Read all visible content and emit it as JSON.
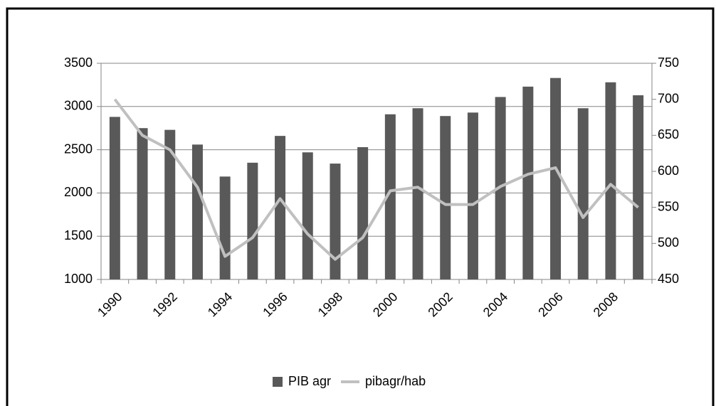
{
  "chart_data": {
    "type": "bar-line",
    "categories": [
      "1990",
      null,
      "1992",
      null,
      "1994",
      null,
      "1996",
      null,
      "1998",
      null,
      "2000",
      null,
      "2002",
      null,
      "2004",
      null,
      "2006",
      null,
      "2008",
      null
    ],
    "series": [
      {
        "name": "PIB agr",
        "type": "bar",
        "color": "#595959",
        "values": [
          2880,
          2750,
          2730,
          2560,
          2190,
          2350,
          2660,
          2470,
          2340,
          2530,
          2910,
          2980,
          2890,
          2930,
          3110,
          3230,
          3330,
          2980,
          3280,
          3130
        ]
      },
      {
        "name": "pibagr/hab",
        "type": "line",
        "axis": "y2",
        "color": "#c0c0c0",
        "values": [
          700,
          650,
          630,
          578,
          482,
          508,
          562,
          513,
          478,
          508,
          573,
          578,
          554,
          554,
          579,
          596,
          605,
          536,
          582,
          550
        ]
      }
    ],
    "ylim": [
      1000,
      3500
    ],
    "yticks": [
      1000,
      1500,
      2000,
      2500,
      3000,
      3500
    ],
    "y2lim": [
      450,
      750
    ],
    "y2ticks": [
      450,
      500,
      550,
      600,
      650,
      700,
      750
    ],
    "grid": true,
    "legend": "bottom"
  }
}
